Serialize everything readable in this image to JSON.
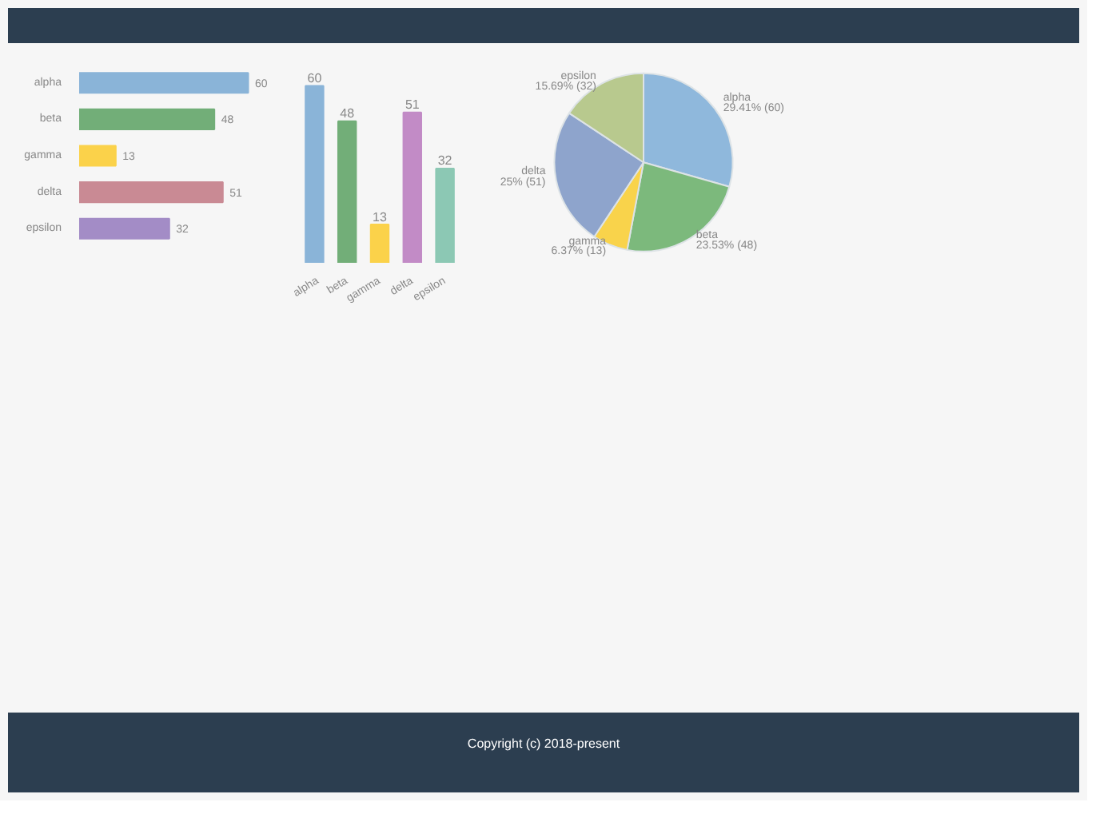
{
  "chart_data": [
    {
      "type": "bar",
      "orientation": "horizontal",
      "categories": [
        "alpha",
        "beta",
        "gamma",
        "delta",
        "epsilon"
      ],
      "values": [
        60,
        48,
        13,
        51,
        32
      ],
      "colors": [
        "#8ab4d8",
        "#72ae78",
        "#fbd24a",
        "#c98a94",
        "#a38cc6"
      ],
      "data_labels": true
    },
    {
      "type": "bar",
      "categories": [
        "alpha",
        "beta",
        "gamma",
        "delta",
        "epsilon"
      ],
      "values": [
        60,
        48,
        13,
        51,
        32
      ],
      "colors": [
        "#8ab4d8",
        "#72ae78",
        "#fbd24a",
        "#c28bc6",
        "#8cc8b4"
      ],
      "data_labels": true
    },
    {
      "type": "pie",
      "categories": [
        "alpha",
        "beta",
        "gamma",
        "delta",
        "epsilon"
      ],
      "values": [
        60,
        48,
        13,
        51,
        32
      ],
      "colors": [
        "#8fb8dc",
        "#7cb97c",
        "#f9d34b",
        "#8ea4cc",
        "#b8c98e"
      ],
      "value_labels": [
        "29.41% (60)",
        "23.53% (48)",
        "6.37% (13)",
        "25% (51)",
        "15.69% (32)"
      ],
      "annotations": [
        "Copyright (c) 2018-present"
      ]
    }
  ]
}
